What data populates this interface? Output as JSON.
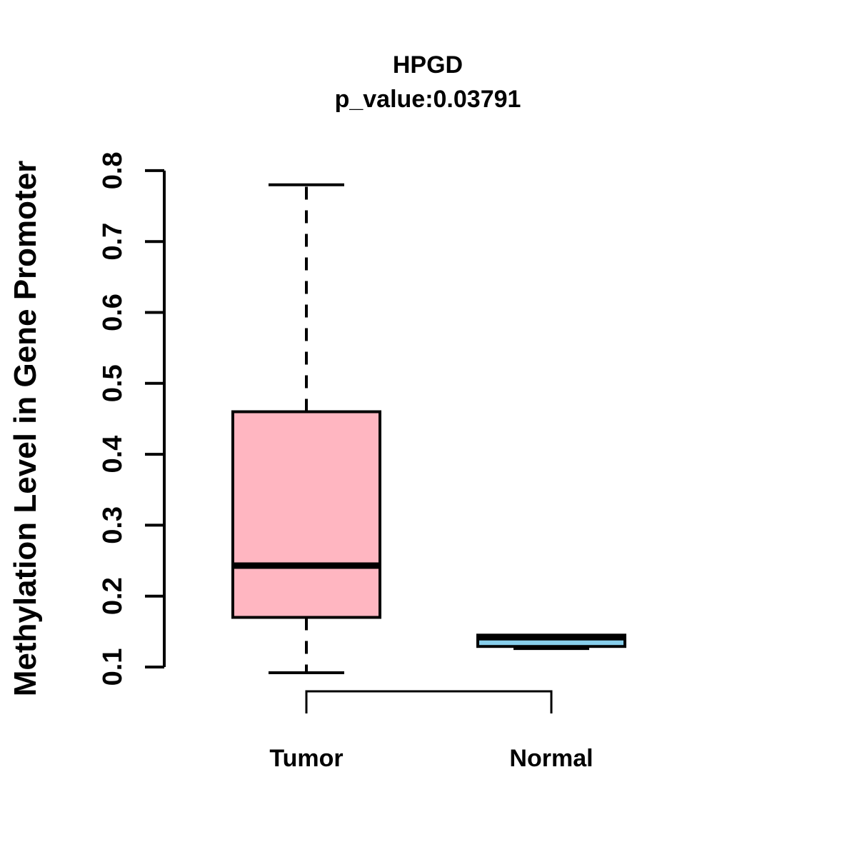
{
  "chart": {
    "title": "HPGD",
    "subtitle": "p_value:0.03791",
    "ylabel": "Methylation Level in Gene Promoter",
    "colors": {
      "line": "#000000",
      "background": "#FFFFFF",
      "tumor_fill": "#FFB6C1",
      "normal_fill": "#87CEEB"
    }
  },
  "chart_data": {
    "type": "boxplot",
    "title": "HPGD",
    "subtitle": "p_value:0.03791",
    "xlabel": "",
    "ylabel": "Methylation Level in Gene Promoter",
    "categories": [
      "Tumor",
      "Normal"
    ],
    "ylim": [
      0.1,
      0.8
    ],
    "yticks": [
      "0.1",
      "0.2",
      "0.3",
      "0.4",
      "0.5",
      "0.6",
      "0.7",
      "0.8"
    ],
    "grid": "off",
    "legend": "none",
    "series": [
      {
        "name": "Tumor",
        "fill": "#FFB6C1",
        "whisker_low": 0.092,
        "q1": 0.17,
        "median": 0.243,
        "q3": 0.46,
        "whisker_high": 0.78
      },
      {
        "name": "Normal",
        "fill": "#87CEEB",
        "whisker_low": 0.126,
        "q1": 0.129,
        "median": 0.142,
        "q3": 0.145,
        "whisker_high": 0.145
      }
    ],
    "comparison_bracket": {
      "from": "Tumor",
      "to": "Normal"
    }
  }
}
